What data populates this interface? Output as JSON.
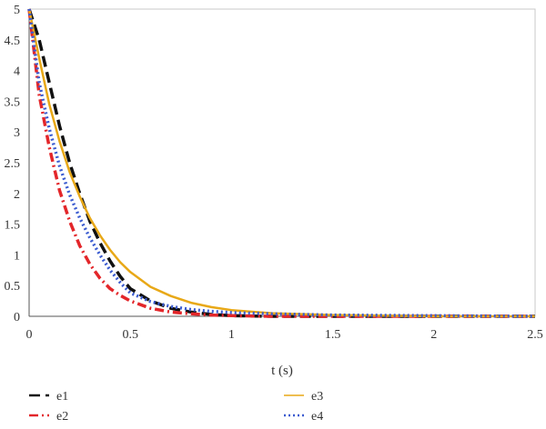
{
  "chart_data": {
    "type": "line",
    "title": "",
    "xlabel": "t (s)",
    "ylabel": "",
    "xlim": [
      0,
      2.5
    ],
    "ylim": [
      0,
      5
    ],
    "x_ticks": [
      "0",
      "0.5",
      "1",
      "1.5",
      "2",
      "2.5"
    ],
    "y_ticks": [
      "0",
      "0.5",
      "1",
      "1.5",
      "2",
      "2.5",
      "3",
      "3.5",
      "4",
      "4.5",
      "5"
    ],
    "grid": false,
    "legend_position": "bottom",
    "series": [
      {
        "name": "e1",
        "color": "#111111",
        "style": "dashed",
        "x": [
          0,
          0.05,
          0.1,
          0.15,
          0.2,
          0.25,
          0.3,
          0.35,
          0.4,
          0.45,
          0.5,
          0.6,
          0.7,
          0.8,
          0.9,
          1.0,
          1.2,
          1.5,
          2.0,
          2.5
        ],
        "y": [
          5.0,
          4.5,
          3.8,
          3.1,
          2.5,
          2.0,
          1.55,
          1.2,
          0.9,
          0.65,
          0.45,
          0.25,
          0.13,
          0.07,
          0.03,
          0.01,
          0.0,
          0.0,
          0.0,
          0.0
        ]
      },
      {
        "name": "e2",
        "color": "#e3262a",
        "style": "dashdot",
        "x": [
          0,
          0.05,
          0.1,
          0.15,
          0.2,
          0.25,
          0.3,
          0.35,
          0.4,
          0.45,
          0.5,
          0.6,
          0.7,
          0.8,
          0.9,
          1.0,
          1.2,
          1.5,
          2.0,
          2.5
        ],
        "y": [
          5.0,
          3.6,
          2.75,
          2.05,
          1.55,
          1.15,
          0.85,
          0.62,
          0.45,
          0.34,
          0.25,
          0.13,
          0.07,
          0.04,
          0.02,
          0.01,
          0.0,
          0.0,
          0.0,
          0.0
        ]
      },
      {
        "name": "e3",
        "color": "#e8a817",
        "style": "solid",
        "x": [
          0,
          0.05,
          0.1,
          0.15,
          0.2,
          0.25,
          0.3,
          0.35,
          0.4,
          0.45,
          0.5,
          0.6,
          0.7,
          0.8,
          0.9,
          1.0,
          1.2,
          1.5,
          2.0,
          2.5
        ],
        "y": [
          5.0,
          4.2,
          3.45,
          2.85,
          2.35,
          1.95,
          1.6,
          1.32,
          1.08,
          0.88,
          0.72,
          0.48,
          0.33,
          0.22,
          0.15,
          0.1,
          0.05,
          0.02,
          0.0,
          0.0
        ]
      },
      {
        "name": "e4",
        "color": "#3a5bd0",
        "style": "dotted",
        "x": [
          0,
          0.05,
          0.1,
          0.15,
          0.2,
          0.25,
          0.3,
          0.35,
          0.4,
          0.45,
          0.5,
          0.6,
          0.7,
          0.8,
          0.9,
          1.0,
          1.2,
          1.5,
          2.0,
          2.5
        ],
        "y": [
          5.0,
          3.8,
          3.05,
          2.45,
          1.98,
          1.6,
          1.28,
          1.0,
          0.75,
          0.55,
          0.38,
          0.24,
          0.16,
          0.11,
          0.08,
          0.06,
          0.04,
          0.02,
          0.01,
          0.0
        ]
      }
    ]
  }
}
